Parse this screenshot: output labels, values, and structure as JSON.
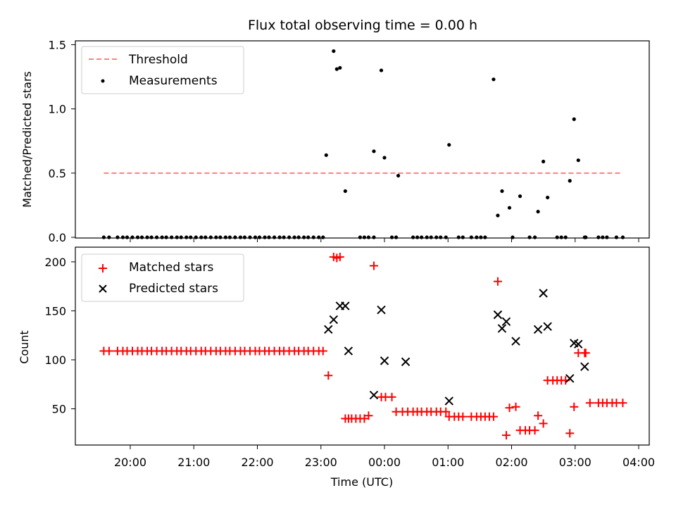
{
  "title": "Flux total observing time = 0.00 h",
  "chart_data": [
    {
      "type": "scatter",
      "panel": "top",
      "ylabel": "Matched/Predicted stars",
      "ylim": [
        0,
        1.53
      ],
      "yticks": [
        0.0,
        0.5,
        1.0,
        1.5
      ],
      "ytick_labels": [
        "0.0",
        "0.5",
        "1.0",
        "1.5"
      ],
      "legend": {
        "placement": "top-left",
        "entries": [
          "Threshold",
          "Measurements"
        ]
      },
      "series": [
        {
          "name": "Threshold",
          "kind": "dashed-line",
          "color": "#ff7f7f",
          "x": [
            "19:35",
            "23:42"
          ],
          "y": [
            0.5,
            0.5
          ],
          "x2": [
            "00:01",
            "03:45"
          ]
        },
        {
          "name": "Measurements",
          "kind": "points",
          "color": "#000000",
          "x": [
            "23:05",
            "23:12",
            "23:15",
            "23:18",
            "23:23",
            "23:50",
            "23:57",
            "24:00",
            "24:13",
            "25:01",
            "25:43",
            "25:47",
            "25:51",
            "25:58",
            "26:08",
            "26:25",
            "26:30",
            "26:34",
            "26:55",
            "26:59",
            "27:03",
            "27:09"
          ],
          "y": [
            0.64,
            1.45,
            1.31,
            1.32,
            0.36,
            0.67,
            1.3,
            0.62,
            0.48,
            0.72,
            1.23,
            0.17,
            0.36,
            0.23,
            0.32,
            0.2,
            0.59,
            0.31,
            0.44,
            0.92,
            0.6,
            0.0
          ],
          "zeros_x": [
            "19:35",
            "19:40",
            "19:48",
            "19:53",
            "19:57",
            "20:02",
            "20:07",
            "20:11",
            "20:16",
            "20:20",
            "20:25",
            "20:30",
            "20:34",
            "20:39",
            "20:44",
            "20:48",
            "20:53",
            "20:57",
            "21:02",
            "21:07",
            "21:11",
            "21:16",
            "21:21",
            "21:25",
            "21:30",
            "21:34",
            "21:39",
            "21:44",
            "21:48",
            "21:53",
            "21:58",
            "22:02",
            "22:07",
            "22:11",
            "22:16",
            "22:21",
            "22:25",
            "22:30",
            "22:35",
            "22:39",
            "22:44",
            "22:48",
            "22:53",
            "22:58",
            "23:02",
            "23:37",
            "23:41",
            "23:45",
            "23:50",
            "24:07",
            "24:11",
            "24:27",
            "24:31",
            "24:35",
            "24:40",
            "24:44",
            "24:49",
            "24:53",
            "24:58",
            "25:10",
            "25:14",
            "25:22",
            "25:27",
            "25:31",
            "25:35",
            "26:01",
            "26:17",
            "26:22",
            "26:43",
            "26:47",
            "26:51",
            "27:10",
            "27:22",
            "27:26",
            "27:30",
            "27:39",
            "27:45"
          ]
        }
      ]
    },
    {
      "type": "scatter",
      "panel": "bottom",
      "xlabel": "Time (UTC)",
      "ylabel": "Count",
      "ylim": [
        13,
        215
      ],
      "yticks": [
        50,
        100,
        150,
        200
      ],
      "ytick_labels": [
        "50",
        "100",
        "150",
        "200"
      ],
      "xlim": [
        "19:05",
        "04:10"
      ],
      "xticks": [
        "20:00",
        "21:00",
        "22:00",
        "23:00",
        "00:00",
        "01:00",
        "02:00",
        "03:00",
        "04:00"
      ],
      "legend": {
        "placement": "top-left",
        "entries": [
          "Matched stars",
          "Predicted stars"
        ]
      },
      "series": [
        {
          "name": "Matched stars",
          "marker": "+",
          "color": "#ff0000",
          "x": [
            "19:35",
            "19:40",
            "19:48",
            "19:53",
            "19:57",
            "20:02",
            "20:07",
            "20:11",
            "20:16",
            "20:20",
            "20:25",
            "20:30",
            "20:34",
            "20:39",
            "20:44",
            "20:48",
            "20:53",
            "20:57",
            "21:02",
            "21:07",
            "21:11",
            "21:16",
            "21:21",
            "21:25",
            "21:30",
            "21:34",
            "21:39",
            "21:44",
            "21:48",
            "21:53",
            "21:58",
            "22:02",
            "22:07",
            "22:11",
            "22:16",
            "22:21",
            "22:25",
            "22:30",
            "22:35",
            "22:39",
            "22:44",
            "22:48",
            "22:53",
            "22:58",
            "23:02",
            "23:07",
            "23:12",
            "23:15",
            "23:18",
            "23:23",
            "23:26",
            "23:29",
            "23:33",
            "23:37",
            "23:41",
            "23:45",
            "23:50",
            "23:57",
            "24:01",
            "24:07",
            "24:11",
            "24:17",
            "24:22",
            "24:27",
            "24:31",
            "24:35",
            "24:40",
            "24:44",
            "24:49",
            "24:53",
            "24:58",
            "25:01",
            "25:06",
            "25:10",
            "25:14",
            "25:22",
            "25:27",
            "25:31",
            "25:35",
            "25:39",
            "25:43",
            "25:47",
            "25:55",
            "25:58",
            "26:04",
            "26:08",
            "26:13",
            "26:17",
            "26:22",
            "26:25",
            "26:30",
            "26:34",
            "26:39",
            "26:43",
            "26:47",
            "26:51",
            "26:55",
            "26:59",
            "27:03",
            "27:09",
            "27:10",
            "27:14",
            "27:22",
            "27:26",
            "27:30",
            "27:35",
            "27:39",
            "27:45"
          ],
          "y": [
            109,
            109,
            109,
            109,
            109,
            109,
            109,
            109,
            109,
            109,
            109,
            109,
            109,
            109,
            109,
            109,
            109,
            109,
            109,
            109,
            109,
            109,
            109,
            109,
            109,
            109,
            109,
            109,
            109,
            109,
            109,
            109,
            109,
            109,
            109,
            109,
            109,
            109,
            109,
            109,
            109,
            109,
            109,
            109,
            109,
            84,
            205,
            204,
            205,
            40,
            40,
            40,
            40,
            40,
            40,
            43,
            196,
            62,
            62,
            62,
            47,
            47,
            47,
            47,
            47,
            47,
            47,
            47,
            47,
            47,
            47,
            42,
            42,
            42,
            42,
            42,
            42,
            42,
            42,
            42,
            42,
            180,
            23,
            51,
            52,
            28,
            28,
            28,
            28,
            43,
            35,
            79,
            79,
            79,
            79,
            79,
            25,
            52,
            107,
            107,
            107,
            56,
            56,
            56,
            56,
            56,
            56,
            56
          ]
        },
        {
          "name": "Predicted stars",
          "marker": "x",
          "color": "#000000",
          "x": [
            "23:07",
            "23:12",
            "23:18",
            "23:23",
            "23:26",
            "23:50",
            "23:57",
            "24:00",
            "24:20",
            "25:01",
            "25:47",
            "25:51",
            "25:55",
            "26:04",
            "26:25",
            "26:30",
            "26:34",
            "26:55",
            "26:59",
            "27:03",
            "27:09"
          ],
          "y": [
            131,
            141,
            155,
            155,
            109,
            64,
            151,
            99,
            98,
            58,
            146,
            132,
            139,
            119,
            131,
            168,
            134,
            81,
            117,
            116,
            93
          ]
        }
      ]
    }
  ]
}
